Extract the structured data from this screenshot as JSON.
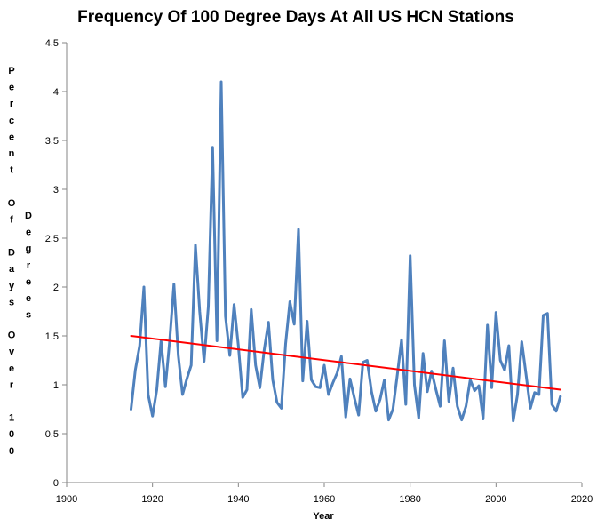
{
  "chart_data": {
    "type": "line",
    "title": "Frequency Of 100 Degree Days At All US HCN Stations",
    "xlabel": "Year",
    "ylabel_words_left": [
      "Percent",
      "Of",
      "Days",
      "Over",
      "100"
    ],
    "ylabel_words_right": [
      "Degrees"
    ],
    "xlim": [
      1900,
      2020
    ],
    "ylim": [
      0,
      4.5
    ],
    "x_ticks": [
      1900,
      1920,
      1940,
      1960,
      1980,
      2000,
      2020
    ],
    "y_ticks": [
      0,
      0.5,
      1,
      1.5,
      2,
      2.5,
      3,
      3.5,
      4,
      4.5
    ],
    "y_tick_labels": [
      "0",
      "0.5",
      "1",
      "1.5",
      "2",
      "2.5",
      "3",
      "3.5",
      "4",
      "4.5"
    ],
    "grid": false,
    "legend": "none",
    "colors": {
      "series": "#4f81bd",
      "trend": "#ff0000",
      "axis": "#868686"
    },
    "series": [
      {
        "name": "Percent Of Days Over 100 Degrees",
        "x": [
          1915,
          1916,
          1917,
          1918,
          1919,
          1920,
          1921,
          1922,
          1923,
          1924,
          1925,
          1926,
          1927,
          1928,
          1929,
          1930,
          1931,
          1932,
          1933,
          1934,
          1935,
          1936,
          1937,
          1938,
          1939,
          1940,
          1941,
          1942,
          1943,
          1944,
          1945,
          1946,
          1947,
          1948,
          1949,
          1950,
          1951,
          1952,
          1953,
          1954,
          1955,
          1956,
          1957,
          1958,
          1959,
          1960,
          1961,
          1962,
          1963,
          1964,
          1965,
          1966,
          1967,
          1968,
          1969,
          1970,
          1971,
          1972,
          1973,
          1974,
          1975,
          1976,
          1977,
          1978,
          1979,
          1980,
          1981,
          1982,
          1983,
          1984,
          1985,
          1986,
          1987,
          1988,
          1989,
          1990,
          1991,
          1992,
          1993,
          1994,
          1995,
          1996,
          1997,
          1998,
          1999,
          2000,
          2001,
          2002,
          2003,
          2004,
          2005,
          2006,
          2007,
          2008,
          2009,
          2010,
          2011,
          2012,
          2013,
          2014,
          2015
        ],
        "y": [
          0.75,
          1.15,
          1.4,
          2.0,
          0.9,
          0.68,
          0.95,
          1.45,
          0.98,
          1.45,
          2.03,
          1.3,
          0.9,
          1.06,
          1.2,
          2.43,
          1.75,
          1.24,
          1.8,
          3.43,
          1.45,
          4.1,
          1.7,
          1.3,
          1.82,
          1.4,
          0.87,
          0.95,
          1.77,
          1.2,
          0.97,
          1.35,
          1.64,
          1.05,
          0.82,
          0.76,
          1.42,
          1.85,
          1.62,
          2.59,
          1.04,
          1.65,
          1.05,
          0.98,
          0.97,
          1.2,
          0.9,
          1.02,
          1.12,
          1.29,
          0.67,
          1.06,
          0.87,
          0.69,
          1.23,
          1.25,
          0.93,
          0.73,
          0.85,
          1.05,
          0.64,
          0.75,
          1.1,
          1.46,
          0.8,
          2.32,
          1.0,
          0.66,
          1.32,
          0.93,
          1.14,
          0.95,
          0.78,
          1.45,
          0.83,
          1.17,
          0.78,
          0.64,
          0.78,
          1.05,
          0.94,
          0.99,
          0.65,
          1.61,
          0.97,
          1.74,
          1.25,
          1.15,
          1.4,
          0.63,
          0.9,
          1.44,
          1.1,
          0.76,
          0.92,
          0.9,
          1.71,
          1.73,
          0.8,
          0.73,
          0.88
        ]
      },
      {
        "name": "Trend",
        "x": [
          1915,
          2015
        ],
        "y": [
          1.5,
          0.95
        ]
      }
    ]
  }
}
